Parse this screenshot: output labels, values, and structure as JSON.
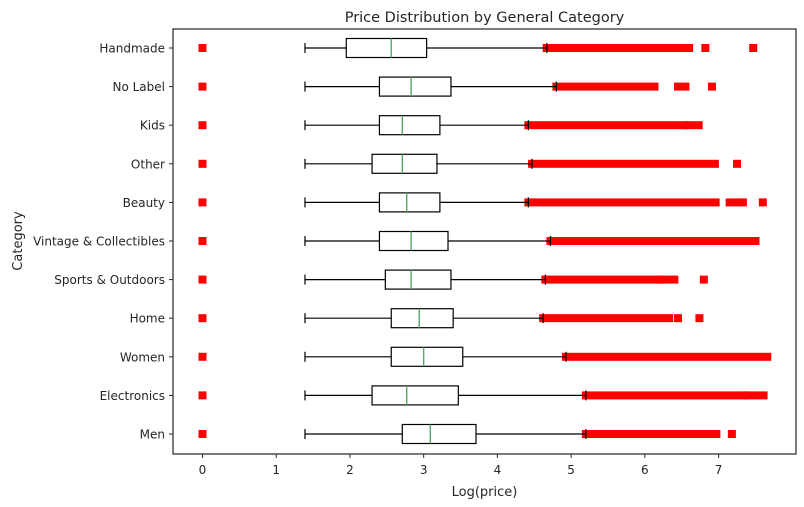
{
  "chart_data": {
    "type": "boxplot",
    "orientation": "horizontal",
    "title": "Price Distribution by General Category",
    "xlabel": "Log(price)",
    "ylabel": "Category",
    "xlim": [
      -0.4,
      8.05
    ],
    "xticks": [
      0,
      1,
      2,
      3,
      4,
      5,
      6,
      7
    ],
    "grid": false,
    "colors": {
      "box": "#000000",
      "median": "#55a868",
      "outlier": "#ff0000",
      "background": "#ffffff"
    },
    "categories": [
      "Handmade",
      "No Label",
      "Kids",
      "Other",
      "Beauty",
      "Vintage & Collectibles",
      "Sports & Outdoors",
      "Home",
      "Women",
      "Electronics",
      "Men"
    ],
    "boxes": [
      {
        "category": "Handmade",
        "whislo": 1.39,
        "q1": 1.95,
        "med": 2.56,
        "q3": 3.04,
        "whishi": 4.67,
        "outliers": [
          0,
          [
            4.67,
            6.28
          ],
          [
            6.32,
            6.6
          ],
          6.82,
          7.47
        ]
      },
      {
        "category": "No Label",
        "whislo": 1.39,
        "q1": 2.4,
        "med": 2.83,
        "q3": 3.37,
        "whishi": 4.8,
        "outliers": [
          0,
          [
            4.8,
            6.13
          ],
          [
            6.45,
            6.55
          ],
          6.91
        ]
      },
      {
        "category": "Kids",
        "whislo": 1.39,
        "q1": 2.4,
        "med": 2.71,
        "q3": 3.22,
        "whishi": 4.42,
        "outliers": [
          0,
          [
            4.42,
            6.53
          ],
          [
            6.58,
            6.73
          ]
        ]
      },
      {
        "category": "Other",
        "whislo": 1.39,
        "q1": 2.3,
        "med": 2.71,
        "q3": 3.18,
        "whishi": 4.47,
        "outliers": [
          0,
          [
            4.47,
            6.95
          ],
          7.25
        ]
      },
      {
        "category": "Beauty",
        "whislo": 1.39,
        "q1": 2.4,
        "med": 2.77,
        "q3": 3.22,
        "whishi": 4.42,
        "outliers": [
          0,
          [
            4.42,
            6.96
          ],
          [
            7.15,
            7.25
          ],
          7.33,
          7.6
        ]
      },
      {
        "category": "Vintage & Collectibles",
        "whislo": 1.39,
        "q1": 2.4,
        "med": 2.83,
        "q3": 3.33,
        "whishi": 4.72,
        "outliers": [
          0,
          [
            4.72,
            7.5
          ]
        ]
      },
      {
        "category": "Sports & Outdoors",
        "whislo": 1.39,
        "q1": 2.48,
        "med": 2.83,
        "q3": 3.37,
        "whishi": 4.65,
        "outliers": [
          0,
          [
            4.65,
            6.19
          ],
          [
            6.22,
            6.4
          ],
          6.8
        ]
      },
      {
        "category": "Home",
        "whislo": 1.39,
        "q1": 2.56,
        "med": 2.94,
        "q3": 3.4,
        "whishi": 4.62,
        "outliers": [
          0,
          [
            4.62,
            6.33
          ],
          6.45,
          6.74
        ]
      },
      {
        "category": "Women",
        "whislo": 1.39,
        "q1": 2.56,
        "med": 3.0,
        "q3": 3.53,
        "whishi": 4.93,
        "outliers": [
          0,
          [
            4.93,
            7.66
          ]
        ]
      },
      {
        "category": "Electronics",
        "whislo": 1.39,
        "q1": 2.3,
        "med": 2.77,
        "q3": 3.47,
        "whishi": 5.2,
        "outliers": [
          0,
          [
            5.2,
            7.36
          ],
          [
            7.39,
            7.61
          ]
        ]
      },
      {
        "category": "Men",
        "whislo": 1.39,
        "q1": 2.71,
        "med": 3.09,
        "q3": 3.71,
        "whishi": 5.2,
        "outliers": [
          0,
          [
            5.2,
            6.97
          ],
          7.18
        ]
      }
    ]
  }
}
